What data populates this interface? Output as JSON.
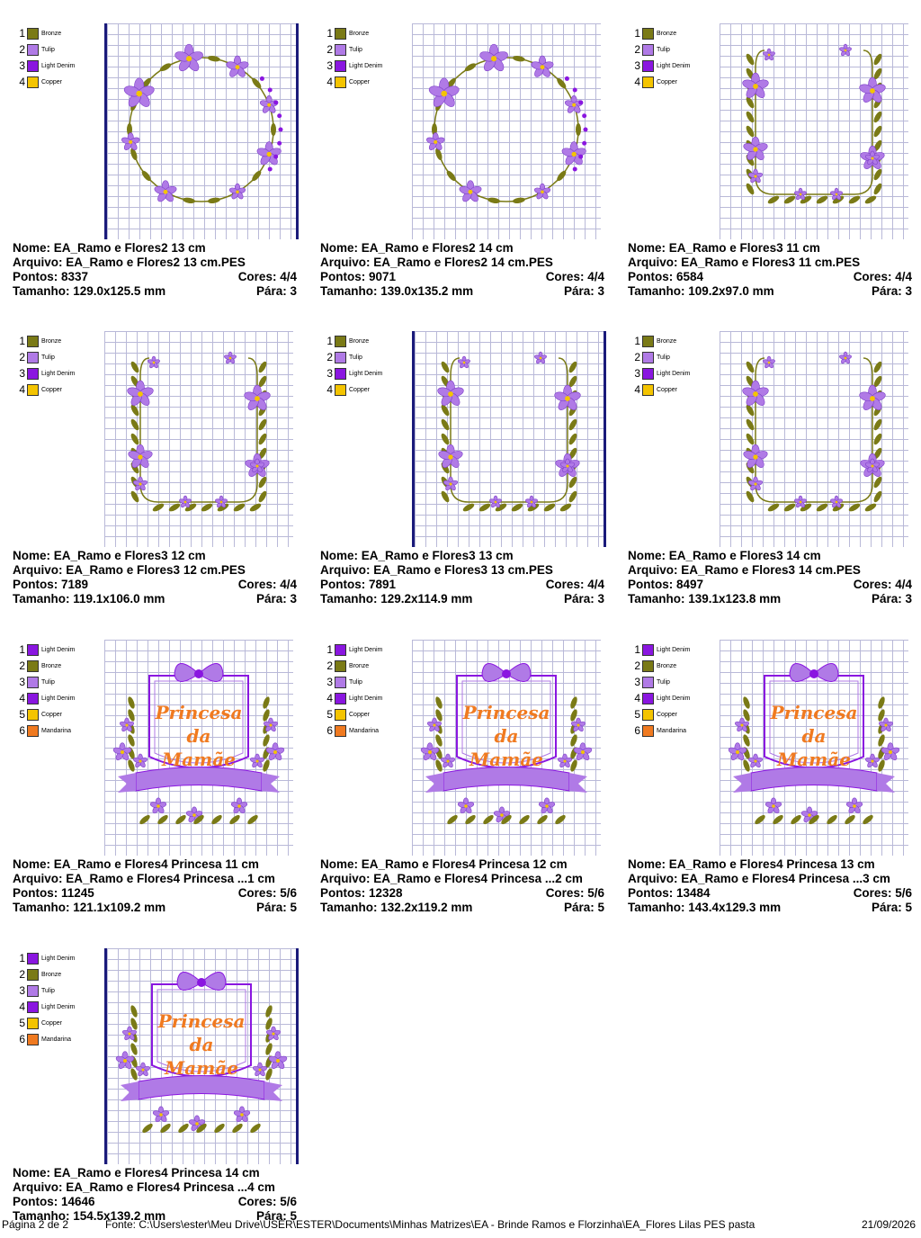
{
  "labels": {
    "nome": "Nome:",
    "arquivo": "Arquivo:",
    "pontos": "Pontos:",
    "cores": "Cores:",
    "tamanho": "Tamanho:",
    "para": "Pára:"
  },
  "colors": {
    "Bronze": "#7a7a16",
    "Tulip": "#b07ae6",
    "Light Denim": "#8a16e0",
    "Copper": "#f4c400",
    "Mandarina": "#f07a20"
  },
  "designs": [
    {
      "nome": "EA_Ramo e Flores2 13 cm",
      "arquivo": "EA_Ramo e Flores2 13 cm.PES",
      "pontos": "8337",
      "cores": "4/4",
      "tamanho": "129.0x125.5 mm",
      "para": "3",
      "legend": [
        "Bronze",
        "Tulip",
        "Light Denim",
        "Copper"
      ],
      "motif": "wreath"
    },
    {
      "nome": "EA_Ramo e Flores2 14 cm",
      "arquivo": "EA_Ramo e Flores2 14 cm.PES",
      "pontos": "9071",
      "cores": "4/4",
      "tamanho": "139.0x135.2 mm",
      "para": "3",
      "legend": [
        "Bronze",
        "Tulip",
        "Light Denim",
        "Copper"
      ],
      "motif": "wreath"
    },
    {
      "nome": "EA_Ramo e Flores3 11 cm",
      "arquivo": "EA_Ramo e Flores3 11 cm.PES",
      "pontos": "6584",
      "cores": "4/4",
      "tamanho": "109.2x97.0 mm",
      "para": "3",
      "legend": [
        "Bronze",
        "Tulip",
        "Light Denim",
        "Copper"
      ],
      "motif": "frame"
    },
    {
      "nome": "EA_Ramo e Flores3 12 cm",
      "arquivo": "EA_Ramo e Flores3 12 cm.PES",
      "pontos": "7189",
      "cores": "4/4",
      "tamanho": "119.1x106.0 mm",
      "para": "3",
      "legend": [
        "Bronze",
        "Tulip",
        "Light Denim",
        "Copper"
      ],
      "motif": "frame"
    },
    {
      "nome": "EA_Ramo e Flores3 13 cm",
      "arquivo": "EA_Ramo e Flores3 13 cm.PES",
      "pontos": "7891",
      "cores": "4/4",
      "tamanho": "129.2x114.9 mm",
      "para": "3",
      "legend": [
        "Bronze",
        "Tulip",
        "Light Denim",
        "Copper"
      ],
      "motif": "frame"
    },
    {
      "nome": "EA_Ramo e Flores3 14 cm",
      "arquivo": "EA_Ramo e Flores3 14 cm.PES",
      "pontos": "8497",
      "cores": "4/4",
      "tamanho": "139.1x123.8 mm",
      "para": "3",
      "legend": [
        "Bronze",
        "Tulip",
        "Light Denim",
        "Copper"
      ],
      "motif": "frame"
    },
    {
      "nome": "EA_Ramo e Flores4 Princesa 11 cm",
      "arquivo": "EA_Ramo e Flores4 Princesa ...1 cm",
      "pontos": "11245",
      "cores": "5/6",
      "tamanho": "121.1x109.2 mm",
      "para": "5",
      "legend": [
        "Light Denim",
        "Bronze",
        "Tulip",
        "Light Denim",
        "Copper",
        "Mandarina"
      ],
      "motif": "princesa",
      "motif_text": [
        "Princesa",
        "da",
        "Mamãe"
      ]
    },
    {
      "nome": "EA_Ramo e Flores4 Princesa 12 cm",
      "arquivo": "EA_Ramo e Flores4 Princesa ...2 cm",
      "pontos": "12328",
      "cores": "5/6",
      "tamanho": "132.2x119.2 mm",
      "para": "5",
      "legend": [
        "Light Denim",
        "Bronze",
        "Tulip",
        "Light Denim",
        "Copper",
        "Mandarina"
      ],
      "motif": "princesa",
      "motif_text": [
        "Princesa",
        "da",
        "Mamãe"
      ]
    },
    {
      "nome": "EA_Ramo e Flores4 Princesa 13 cm",
      "arquivo": "EA_Ramo e Flores4 Princesa ...3 cm",
      "pontos": "13484",
      "cores": "5/6",
      "tamanho": "143.4x129.3 mm",
      "para": "5",
      "legend": [
        "Light Denim",
        "Bronze",
        "Tulip",
        "Light Denim",
        "Copper",
        "Mandarina"
      ],
      "motif": "princesa",
      "motif_text": [
        "Princesa",
        "da",
        "Mamãe"
      ]
    },
    {
      "nome": "EA_Ramo e Flores4 Princesa 14 cm",
      "arquivo": "EA_Ramo e Flores4 Princesa ...4 cm",
      "pontos": "14646",
      "cores": "5/6",
      "tamanho": "154.5x139.2 mm",
      "para": "5",
      "legend": [
        "Light Denim",
        "Bronze",
        "Tulip",
        "Light Denim",
        "Copper",
        "Mandarina"
      ],
      "motif": "princesa",
      "motif_text": [
        "Princesa",
        "da",
        "Mamãe"
      ]
    }
  ],
  "footer": {
    "page": "Página 2 de 2",
    "source": "Fonte: C:\\Users\\ester\\Meu Drive\\USER\\ESTER\\Documents\\Minhas Matrizes\\EA - Brinde Ramos e Florzinha\\EA_Flores Lilas PES pasta",
    "date": "21/09/2026"
  }
}
